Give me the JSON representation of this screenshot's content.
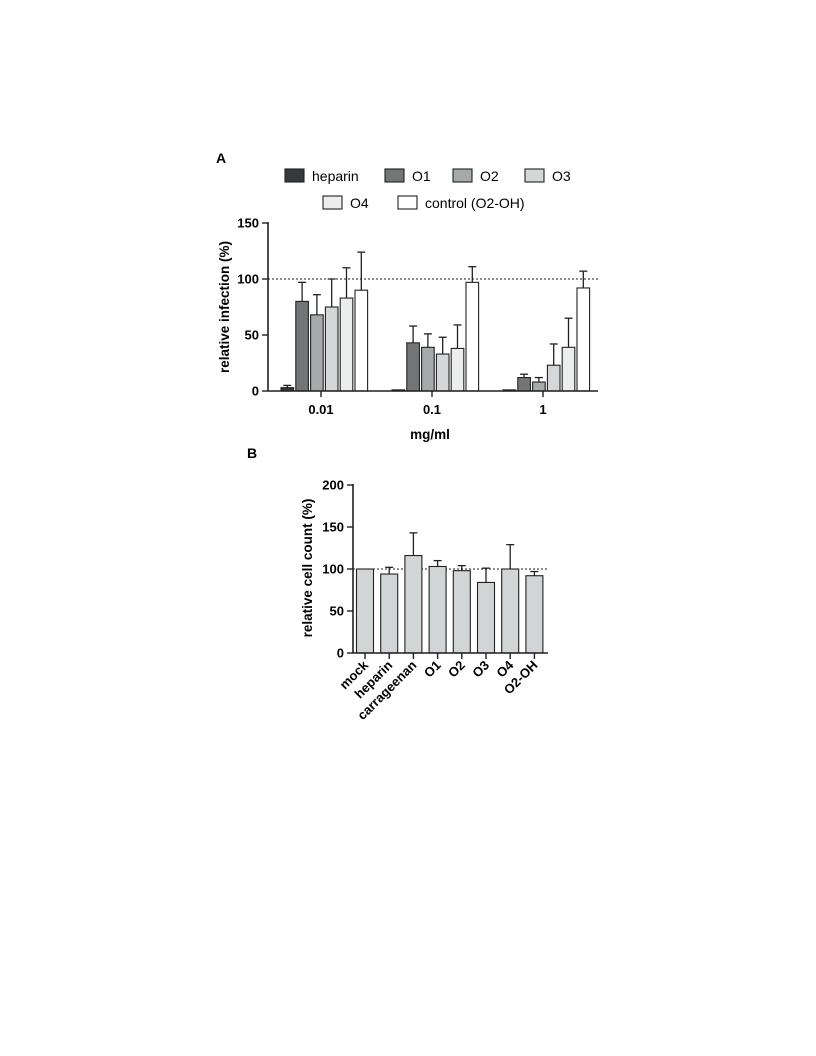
{
  "panels": {
    "a": {
      "letter": "A"
    },
    "b": {
      "letter": "B"
    }
  },
  "chart_data": [
    {
      "type": "bar",
      "xlabel": "mg/ml",
      "ylabel": "relative infection (%)",
      "categories": [
        "0.01",
        "0.1",
        "1"
      ],
      "ylim": [
        0,
        150
      ],
      "yticks": [
        0,
        50,
        100,
        150
      ],
      "reference_line": 100,
      "legend_position": "top",
      "series": [
        {
          "name": "heparin",
          "color": "#36393b",
          "values": [
            3,
            1,
            1
          ],
          "errors": [
            2,
            0,
            0
          ]
        },
        {
          "name": "O1",
          "color": "#737677",
          "values": [
            80,
            43,
            12
          ],
          "errors": [
            17,
            15,
            3
          ]
        },
        {
          "name": "O2",
          "color": "#a5aaaa",
          "values": [
            68,
            39,
            8
          ],
          "errors": [
            18,
            12,
            4
          ]
        },
        {
          "name": "O3",
          "color": "#d3d7d7",
          "values": [
            75,
            33,
            23
          ],
          "errors": [
            25,
            15,
            19
          ]
        },
        {
          "name": "O4",
          "color": "#eceeee",
          "values": [
            83,
            38,
            39
          ],
          "errors": [
            27,
            21,
            26
          ]
        },
        {
          "name": "control (O2-OH)",
          "color": "#ffffff",
          "values": [
            90,
            97,
            92
          ],
          "errors": [
            34,
            14,
            15
          ]
        }
      ]
    },
    {
      "type": "bar",
      "ylabel": "relative cell count (%)",
      "categories": [
        "mock",
        "heparin",
        "carrageenan",
        "O1",
        "O2",
        "O3",
        "O4",
        "O2-OH"
      ],
      "values": [
        100,
        94,
        116,
        103,
        98,
        84,
        100,
        92
      ],
      "errors": [
        0,
        8,
        27,
        7,
        6,
        17,
        29,
        5
      ],
      "ylim": [
        0,
        200
      ],
      "yticks": [
        0,
        50,
        100,
        150,
        200
      ],
      "reference_line": 100,
      "bar_color": "#d1d5d5"
    }
  ]
}
